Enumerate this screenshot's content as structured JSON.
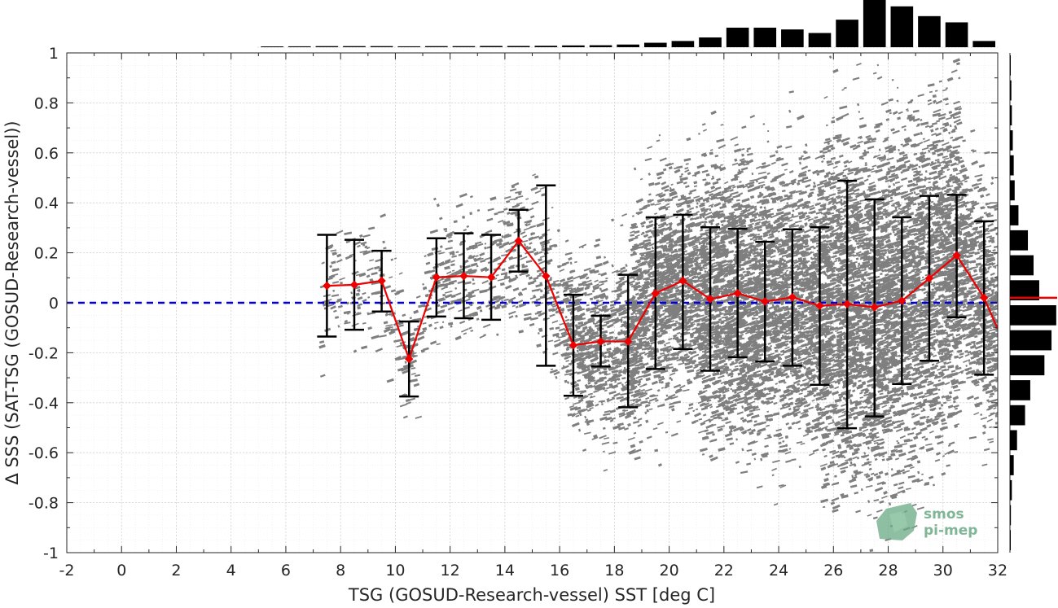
{
  "chart_data": {
    "type": "scatter",
    "xlabel": "TSG (GOSUD-Research-vessel) SST [deg C]",
    "ylabel": "Δ SSS (SAT-TSG (GOSUD-Research-vessel))",
    "xlim": [
      -2,
      32
    ],
    "ylim": [
      -1,
      1
    ],
    "x_ticks": [
      "-2",
      "0",
      "2",
      "4",
      "6",
      "8",
      "10",
      "12",
      "14",
      "16",
      "18",
      "20",
      "22",
      "24",
      "26",
      "28",
      "30",
      "32"
    ],
    "y_ticks": [
      "1",
      "0.8",
      "0.6",
      "0.4",
      "0.2",
      "0",
      "-0.2",
      "-0.4",
      "-0.6",
      "-0.8",
      "-1"
    ],
    "grid": true,
    "zero_line": 0,
    "binned_mean": {
      "x": [
        7.5,
        8.5,
        9.5,
        10.5,
        11.5,
        12.5,
        13.5,
        14.5,
        15.5,
        16.5,
        17.5,
        18.5,
        19.5,
        20.5,
        21.5,
        22.5,
        23.5,
        24.5,
        25.5,
        26.5,
        27.5,
        28.5,
        29.5,
        30.5,
        31.5,
        32
      ],
      "mean": [
        0.068,
        0.072,
        0.088,
        -0.225,
        0.102,
        0.107,
        0.102,
        0.248,
        0.107,
        -0.17,
        -0.155,
        -0.155,
        0.038,
        0.088,
        0.015,
        0.038,
        0.005,
        0.022,
        -0.012,
        -0.005,
        -0.018,
        0.008,
        0.098,
        0.19,
        0.02,
        -0.105
      ],
      "upper": [
        0.272,
        0.252,
        0.208,
        -0.075,
        0.258,
        0.278,
        0.272,
        0.372,
        0.47,
        0.032,
        -0.052,
        0.112,
        0.342,
        0.352,
        0.302,
        0.296,
        0.244,
        0.294,
        0.302,
        0.488,
        0.414,
        0.342,
        0.428,
        0.432,
        0.326,
        null
      ],
      "lower": [
        -0.135,
        -0.108,
        -0.035,
        -0.375,
        -0.055,
        -0.062,
        -0.068,
        0.125,
        -0.252,
        -0.372,
        -0.255,
        -0.418,
        -0.265,
        -0.185,
        -0.272,
        -0.218,
        -0.235,
        -0.252,
        -0.328,
        -0.502,
        -0.455,
        -0.325,
        -0.232,
        -0.058,
        -0.288,
        null
      ]
    },
    "histogram_top": {
      "bin_centers": [
        5.5,
        6.5,
        7.5,
        8.5,
        9.5,
        10.5,
        11.5,
        12.5,
        13.5,
        14.5,
        15.5,
        16.5,
        17.5,
        18.5,
        19.5,
        20.5,
        21.5,
        22.5,
        23.5,
        24.5,
        25.5,
        26.5,
        27.5,
        28.5,
        29.5,
        30.5,
        31.5
      ],
      "counts": [
        0.008,
        0.01,
        0.012,
        0.012,
        0.012,
        0.01,
        0.012,
        0.012,
        0.014,
        0.014,
        0.016,
        0.02,
        0.022,
        0.03,
        0.05,
        0.07,
        0.11,
        0.22,
        0.22,
        0.2,
        0.16,
        0.31,
        0.55,
        0.46,
        0.35,
        0.28,
        0.07
      ]
    },
    "histogram_right": {
      "bin_centers": [
        0.95,
        0.85,
        0.75,
        0.65,
        0.55,
        0.45,
        0.35,
        0.25,
        0.15,
        0.05,
        -0.05,
        -0.15,
        -0.25,
        -0.35,
        -0.45,
        -0.55,
        -0.65,
        -0.75,
        -0.85,
        -0.95
      ],
      "counts": [
        0.01,
        0.03,
        0.04,
        0.06,
        0.08,
        0.1,
        0.18,
        0.38,
        0.5,
        0.62,
        0.98,
        0.88,
        0.73,
        0.43,
        0.32,
        0.15,
        0.08,
        0.04,
        0.02,
        0.01
      ],
      "median": 0.02
    },
    "colors": {
      "scatter": "#7f7f7f",
      "mean_line": "#ee0000",
      "error_bars": "#000000",
      "zero_line": "#0000dd",
      "hist": "#000000"
    }
  },
  "logo": {
    "line1": "smos",
    "line2": "pi-mep"
  }
}
